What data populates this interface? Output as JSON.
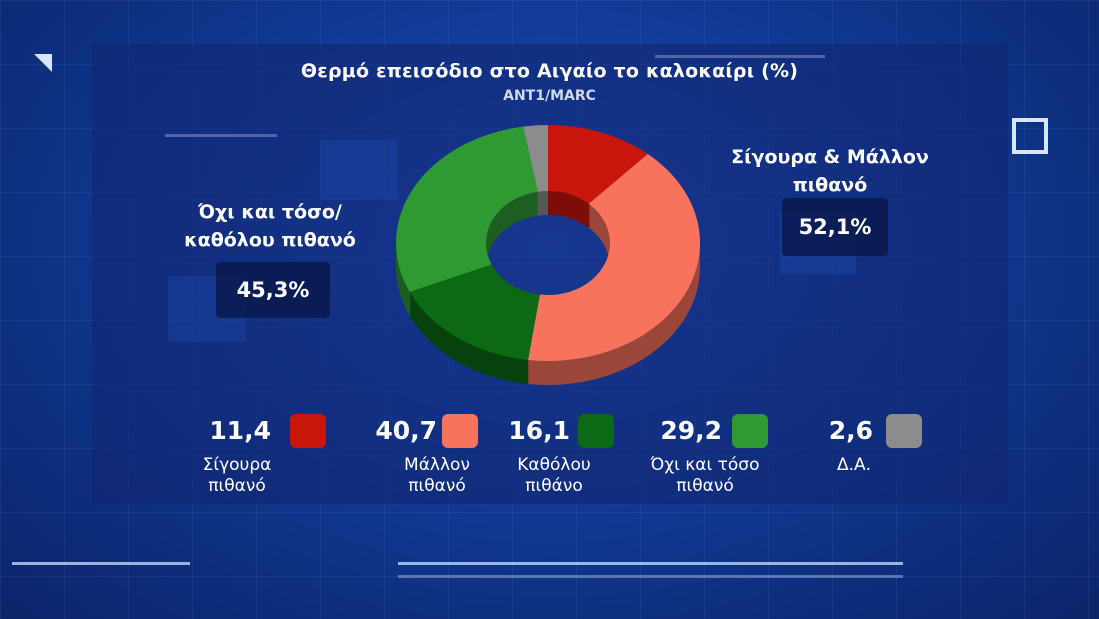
{
  "title": "Θερμό επεισόδιο στο Αιγαίο το καλοκαίρι (%)",
  "source": "ANT1/MARC",
  "groups": {
    "left": {
      "label_line1": "Όχι και τόσο/",
      "label_line2": "καθόλου πιθανό",
      "pct": "45,3%"
    },
    "right": {
      "label_line1": "Σίγουρα & Μάλλον",
      "label_line2": "πιθανό",
      "pct": "52,1%"
    }
  },
  "legend": [
    {
      "value": "11,4",
      "line1": "Σίγουρα",
      "line2": "πιθανό",
      "color": "#c8160c"
    },
    {
      "value": "40,7",
      "line1": "Μάλλον",
      "line2": "πιθανό",
      "color": "#f8735e"
    },
    {
      "value": "16,1",
      "line1": "Καθόλου",
      "line2": "πιθάνο",
      "color": "#0c6a16"
    },
    {
      "value": "29,2",
      "line1": "Όχι και τόσο",
      "line2": "πιθανό",
      "color": "#2e9a34"
    },
    {
      "value": "2,6",
      "line1": "Δ.Α.",
      "line2": "",
      "color": "#8c8c8c"
    }
  ],
  "chart_data": {
    "type": "pie",
    "title": "Θερμό επεισόδιο στο Αιγαίο το καλοκαίρι (%)",
    "subtitle": "ANT1/MARC",
    "categories": [
      "Σίγουρα πιθανό",
      "Μάλλον πιθανό",
      "Καθόλου πιθάνο",
      "Όχι και τόσο πιθανό",
      "Δ.Α."
    ],
    "values": [
      11.4,
      40.7,
      16.1,
      29.2,
      2.6
    ],
    "colors": [
      "#c8160c",
      "#f8735e",
      "#0c6a16",
      "#2e9a34",
      "#8c8c8c"
    ],
    "donut": true,
    "groups": [
      {
        "name": "Σίγουρα & Μάλλον πιθανό",
        "value": 52.1
      },
      {
        "name": "Όχι και τόσο/καθόλου πιθανό",
        "value": 45.3
      }
    ]
  }
}
